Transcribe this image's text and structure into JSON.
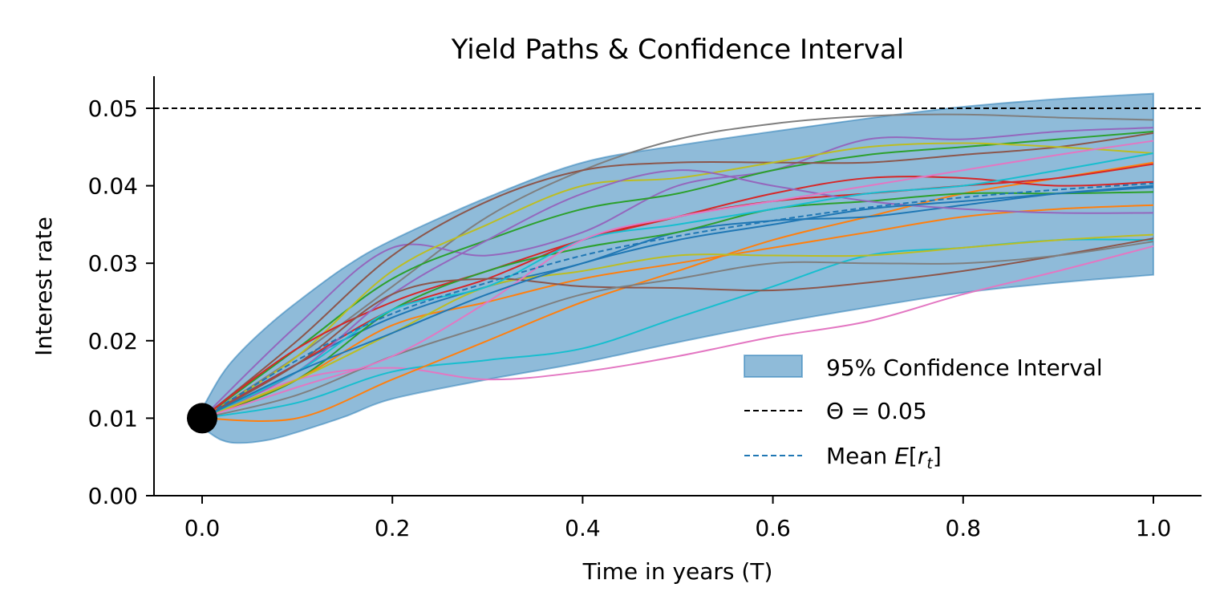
{
  "chart_data": {
    "type": "line",
    "title": "Yield Paths & Confidence Interval",
    "xlabel": "Time in years (T)",
    "ylabel": "Interest rate",
    "xlim": [
      -0.05,
      1.05
    ],
    "ylim": [
      0.0,
      0.054
    ],
    "xticks": [
      "0.0",
      "0.2",
      "0.4",
      "0.6",
      "0.8",
      "1.0"
    ],
    "yticks": [
      "0.00",
      "0.01",
      "0.02",
      "0.03",
      "0.04",
      "0.05"
    ],
    "grid": false,
    "legend_placement": "lower-right",
    "legend": {
      "ci_label": "95% Confidence Interval",
      "theta_label": "Θ = 0.05",
      "mean_label_prefix": "Mean ",
      "mean_label_E": "E",
      "mean_label_open": "[",
      "mean_label_r": "r",
      "mean_label_sub": "t",
      "mean_label_close": "]"
    },
    "theta": 0.05,
    "initial_rate": {
      "t": 0.0,
      "r": 0.01
    },
    "t": [
      0.0,
      0.1,
      0.2,
      0.3,
      0.4,
      0.5,
      0.6,
      0.7,
      0.8,
      0.9,
      1.0
    ],
    "ci_t": [
      0.0,
      0.02,
      0.04,
      0.07,
      0.1,
      0.15,
      0.2,
      0.3,
      0.4,
      0.5,
      0.6,
      0.7,
      0.8,
      0.9,
      1.0
    ],
    "ci_upper": [
      0.0112,
      0.0155,
      0.0185,
      0.022,
      0.025,
      0.0295,
      0.033,
      0.0385,
      0.043,
      0.0452,
      0.047,
      0.0487,
      0.0502,
      0.0512,
      0.0519
    ],
    "ci_lower": [
      0.0088,
      0.0072,
      0.0068,
      0.0072,
      0.0082,
      0.0102,
      0.0125,
      0.015,
      0.0172,
      0.0198,
      0.0222,
      0.0243,
      0.0262,
      0.0275,
      0.0285
    ],
    "mean": [
      0.01,
      0.0175,
      0.0235,
      0.0275,
      0.031,
      0.0335,
      0.0355,
      0.0372,
      0.0385,
      0.0395,
      0.0403
    ],
    "colors": {
      "ci_fill": "#1f77b4",
      "theta_line": "#000000",
      "mean_line": "#1f77b4",
      "initial_point": "#000000",
      "paths": [
        "#7f7f7f",
        "#9467bd",
        "#2ca02c",
        "#8c564b",
        "#e377c2",
        "#17becf",
        "#bcbd22",
        "#ff7f0e",
        "#d62728",
        "#1f77b4",
        "#d62728",
        "#2ca02c",
        "#ff7f0e",
        "#9467bd",
        "#bcbd22",
        "#8c564b",
        "#17becf",
        "#7f7f7f",
        "#e377c2",
        "#1f77b4"
      ]
    },
    "paths": [
      [
        0.01,
        0.018,
        0.027,
        0.036,
        0.042,
        0.046,
        0.048,
        0.049,
        0.0492,
        0.0488,
        0.0485
      ],
      [
        0.01,
        0.022,
        0.032,
        0.031,
        0.034,
        0.04,
        0.042,
        0.046,
        0.046,
        0.047,
        0.0475
      ],
      [
        0.01,
        0.019,
        0.028,
        0.033,
        0.037,
        0.039,
        0.042,
        0.044,
        0.045,
        0.046,
        0.047
      ],
      [
        0.01,
        0.02,
        0.031,
        0.038,
        0.042,
        0.043,
        0.043,
        0.043,
        0.044,
        0.045,
        0.0468
      ],
      [
        0.01,
        0.015,
        0.0165,
        0.015,
        0.016,
        0.018,
        0.0205,
        0.0225,
        0.026,
        0.029,
        0.0322
      ],
      [
        0.01,
        0.012,
        0.016,
        0.0175,
        0.019,
        0.023,
        0.027,
        0.031,
        0.032,
        0.033,
        0.033
      ],
      [
        0.01,
        0.018,
        0.029,
        0.035,
        0.04,
        0.041,
        0.043,
        0.045,
        0.0455,
        0.045,
        0.0442
      ],
      [
        0.01,
        0.01,
        0.015,
        0.02,
        0.025,
        0.029,
        0.033,
        0.036,
        0.039,
        0.041,
        0.043
      ],
      [
        0.01,
        0.019,
        0.025,
        0.029,
        0.033,
        0.036,
        0.039,
        0.041,
        0.041,
        0.04,
        0.0405
      ],
      [
        0.01,
        0.017,
        0.023,
        0.027,
        0.03,
        0.034,
        0.0355,
        0.036,
        0.0375,
        0.039,
        0.04
      ],
      [
        0.01,
        0.017,
        0.024,
        0.028,
        0.033,
        0.036,
        0.038,
        0.039,
        0.04,
        0.041,
        0.0428
      ],
      [
        0.01,
        0.015,
        0.024,
        0.029,
        0.032,
        0.034,
        0.037,
        0.038,
        0.039,
        0.039,
        0.0392
      ],
      [
        0.01,
        0.015,
        0.022,
        0.025,
        0.028,
        0.03,
        0.032,
        0.034,
        0.036,
        0.037,
        0.0375
      ],
      [
        0.01,
        0.016,
        0.026,
        0.033,
        0.039,
        0.042,
        0.04,
        0.038,
        0.037,
        0.0365,
        0.0365
      ],
      [
        0.01,
        0.015,
        0.021,
        0.027,
        0.029,
        0.031,
        0.031,
        0.031,
        0.032,
        0.033,
        0.0337
      ],
      [
        0.01,
        0.017,
        0.026,
        0.028,
        0.027,
        0.0268,
        0.0265,
        0.0275,
        0.029,
        0.031,
        0.0332
      ],
      [
        0.01,
        0.016,
        0.024,
        0.027,
        0.033,
        0.035,
        0.037,
        0.039,
        0.04,
        0.042,
        0.0442
      ],
      [
        0.01,
        0.013,
        0.018,
        0.022,
        0.026,
        0.028,
        0.03,
        0.03,
        0.03,
        0.031,
        0.0328
      ],
      [
        0.01,
        0.014,
        0.018,
        0.025,
        0.033,
        0.036,
        0.038,
        0.04,
        0.042,
        0.044,
        0.0458
      ],
      [
        0.01,
        0.016,
        0.021,
        0.026,
        0.03,
        0.033,
        0.035,
        0.037,
        0.038,
        0.039,
        0.0398
      ]
    ]
  }
}
